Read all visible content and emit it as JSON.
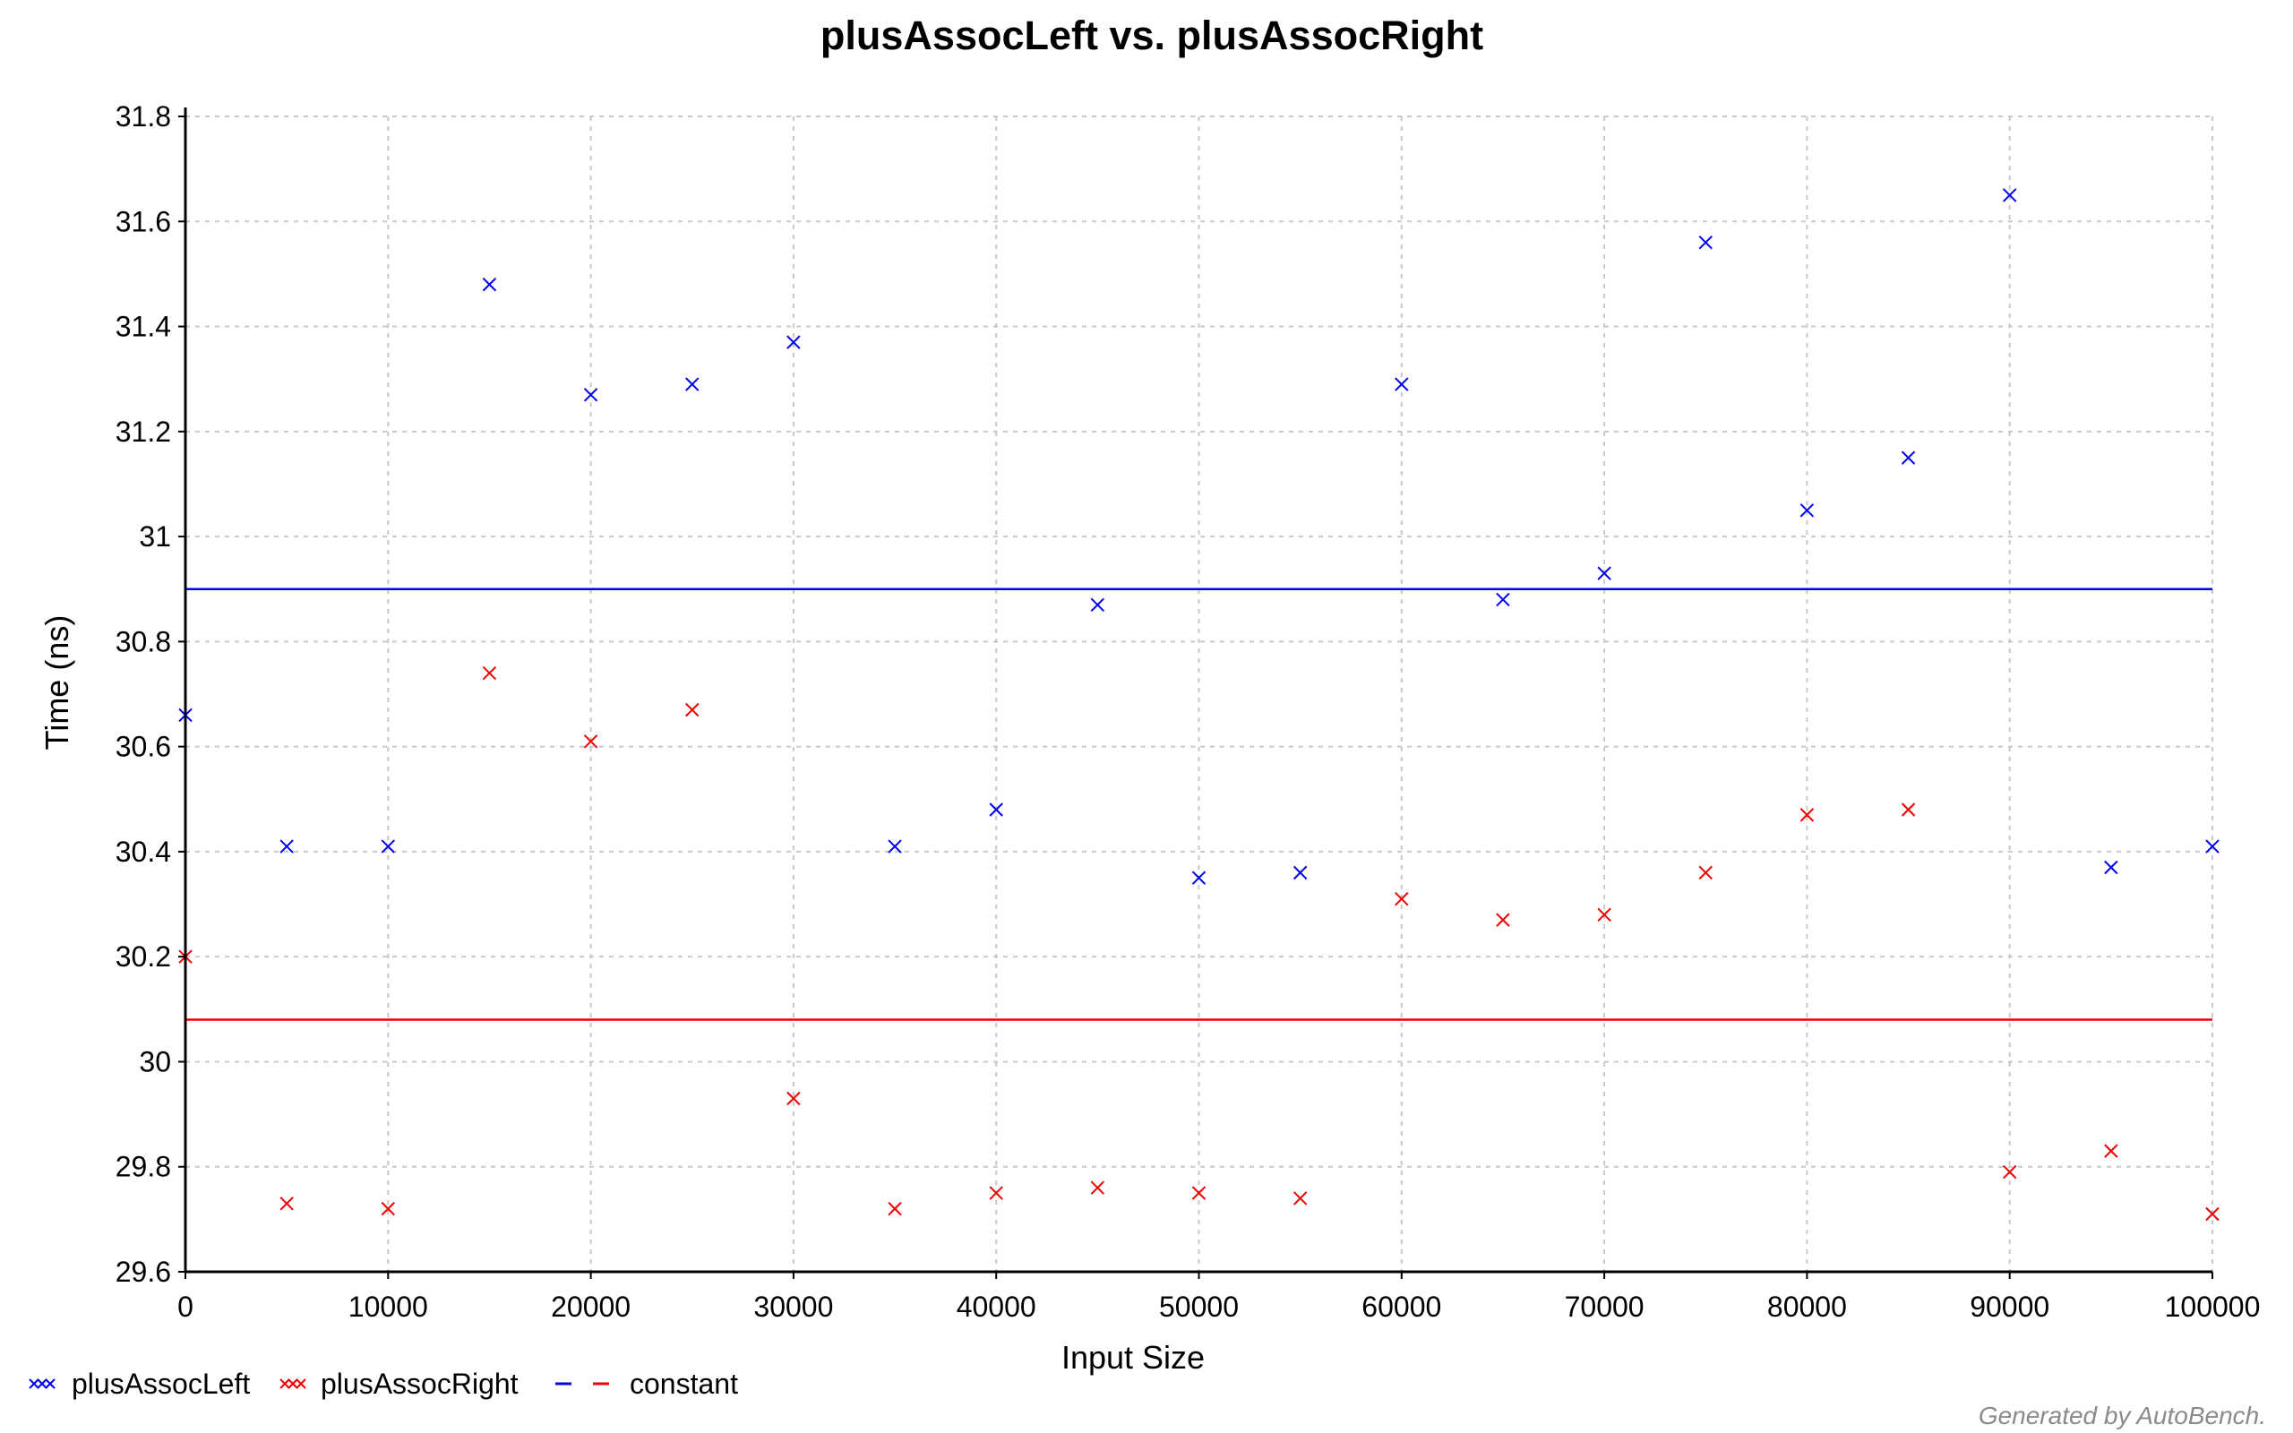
{
  "chart_data": {
    "type": "scatter",
    "title": "plusAssocLeft vs. plusAssocRight",
    "xlabel": "Input Size",
    "ylabel": "Time (ns)",
    "xlim": [
      0,
      100000
    ],
    "ylim": [
      29.6,
      31.8
    ],
    "xticks": [
      "0",
      "10000",
      "20000",
      "30000",
      "40000",
      "50000",
      "60000",
      "70000",
      "80000",
      "90000",
      "100000"
    ],
    "yticks": [
      "29.6",
      "29.8",
      "30",
      "30.2",
      "30.4",
      "30.6",
      "30.8",
      "31",
      "31.2",
      "31.4",
      "31.6",
      "31.8"
    ],
    "grid": true,
    "legend_position": "bottom-left",
    "x": [
      0,
      5000,
      10000,
      15000,
      20000,
      25000,
      30000,
      35000,
      40000,
      45000,
      50000,
      55000,
      60000,
      65000,
      70000,
      75000,
      80000,
      85000,
      90000,
      95000,
      100000
    ],
    "series": [
      {
        "name": "plusAssocLeft",
        "color": "#0000ee",
        "marker": "x",
        "values": [
          30.66,
          30.41,
          30.41,
          31.48,
          31.27,
          31.29,
          31.37,
          30.41,
          30.48,
          30.87,
          30.35,
          30.36,
          31.29,
          30.88,
          30.93,
          31.56,
          31.05,
          31.15,
          31.65,
          30.37,
          30.41
        ]
      },
      {
        "name": "plusAssocRight",
        "color": "#ee0000",
        "marker": "x",
        "values": [
          30.2,
          29.73,
          29.72,
          30.74,
          30.61,
          30.67,
          29.93,
          29.72,
          29.75,
          29.76,
          29.75,
          29.74,
          30.31,
          30.27,
          30.28,
          30.36,
          30.47,
          30.48,
          29.79,
          29.83,
          29.71
        ]
      }
    ],
    "constants": [
      {
        "series": "plusAssocLeft",
        "value": 30.9,
        "color": "#0000ee"
      },
      {
        "series": "plusAssocRight",
        "value": 30.08,
        "color": "#ee0000"
      }
    ],
    "legend": {
      "entries": [
        "plusAssocLeft",
        "plusAssocRight",
        "constant"
      ]
    },
    "footer": "Generated by AutoBench."
  }
}
